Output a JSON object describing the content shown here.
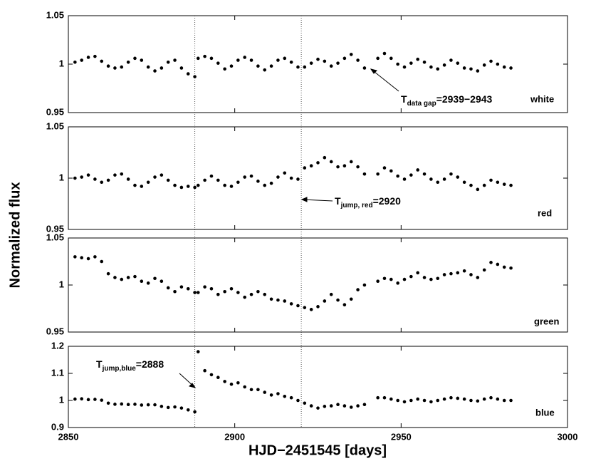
{
  "xlabel": "HJD−2451545 [days]",
  "ylabel": "Normalized flux",
  "vlines": [
    2888,
    2920
  ],
  "chart_data": [
    {
      "type": "scatter",
      "label": "white",
      "ann_main": "T",
      "ann_sub": "data gap",
      "ann_rest": "=2939−2943",
      "color": "#000000",
      "xlim": [
        2850,
        3000
      ],
      "xticks": [
        2850,
        2900,
        2950,
        3000
      ],
      "ylim": [
        0.95,
        1.05
      ],
      "yticks": [
        0.95,
        1,
        1.05
      ],
      "x": [
        2852,
        2854,
        2856,
        2858,
        2860,
        2862,
        2864,
        2866,
        2868,
        2870,
        2872,
        2874,
        2876,
        2878,
        2880,
        2882,
        2884,
        2886,
        2888,
        2889,
        2891,
        2893,
        2895,
        2897,
        2899,
        2901,
        2903,
        2905,
        2907,
        2909,
        2911,
        2913,
        2915,
        2917,
        2919,
        2921,
        2923,
        2925,
        2927,
        2929,
        2931,
        2933,
        2935,
        2937,
        2939,
        2943,
        2945,
        2947,
        2949,
        2951,
        2953,
        2955,
        2957,
        2959,
        2961,
        2963,
        2965,
        2967,
        2969,
        2971,
        2973,
        2975,
        2977,
        2979,
        2981,
        2983
      ],
      "values": [
        1.002,
        1.004,
        1.007,
        1.008,
        1.003,
        0.998,
        0.996,
        0.997,
        1.002,
        1.006,
        1.004,
        0.997,
        0.993,
        0.996,
        1.002,
        1.004,
        0.996,
        0.99,
        0.987,
        1.006,
        1.008,
        1.006,
        1.001,
        0.995,
        0.998,
        1.004,
        1.007,
        1.004,
        0.998,
        0.994,
        0.998,
        1.004,
        1.006,
        1.002,
        0.997,
        0.997,
        1.001,
        1.005,
        1.003,
        0.998,
        1.001,
        1.006,
        1.01,
        1.004,
        0.996,
        1.006,
        1.011,
        1.006,
        1.0,
        0.997,
        1.001,
        1.005,
        1.002,
        0.997,
        0.995,
        0.999,
        1.004,
        1.001,
        0.996,
        0.995,
        0.993,
        0.999,
        1.003,
        1.0,
        0.997,
        0.996
      ]
    },
    {
      "type": "scatter",
      "label": "red",
      "ann_main": "T",
      "ann_sub": "jump, red",
      "ann_rest": "=2920",
      "color": "#000000",
      "xlim": [
        2850,
        3000
      ],
      "xticks": [
        2850,
        2900,
        2950,
        3000
      ],
      "ylim": [
        0.95,
        1.05
      ],
      "yticks": [
        0.95,
        1,
        1.05
      ],
      "x": [
        2852,
        2854,
        2856,
        2858,
        2860,
        2862,
        2864,
        2866,
        2868,
        2870,
        2872,
        2874,
        2876,
        2878,
        2880,
        2882,
        2884,
        2886,
        2888,
        2889,
        2891,
        2893,
        2895,
        2897,
        2899,
        2901,
        2903,
        2905,
        2907,
        2909,
        2911,
        2913,
        2915,
        2917,
        2919,
        2921,
        2923,
        2925,
        2927,
        2929,
        2931,
        2933,
        2935,
        2937,
        2939,
        2943,
        2945,
        2947,
        2949,
        2951,
        2953,
        2955,
        2957,
        2959,
        2961,
        2963,
        2965,
        2967,
        2969,
        2971,
        2973,
        2975,
        2977,
        2979,
        2981,
        2983
      ],
      "values": [
        1.0,
        1.001,
        1.003,
        0.999,
        0.996,
        0.998,
        1.003,
        1.004,
        0.999,
        0.993,
        0.992,
        0.996,
        1.001,
        1.003,
        0.998,
        0.993,
        0.991,
        0.992,
        0.991,
        0.993,
        0.998,
        1.002,
        0.998,
        0.993,
        0.992,
        0.996,
        1.001,
        1.002,
        0.997,
        0.993,
        0.995,
        1.001,
        1.005,
        1.0,
        0.999,
        1.01,
        1.012,
        1.015,
        1.02,
        1.016,
        1.011,
        1.012,
        1.016,
        1.011,
        1.004,
        1.004,
        1.01,
        1.007,
        1.002,
        0.999,
        1.003,
        1.008,
        1.004,
        0.999,
        0.996,
        0.999,
        1.004,
        1.001,
        0.996,
        0.993,
        0.989,
        0.993,
        0.998,
        0.996,
        0.994,
        0.993
      ]
    },
    {
      "type": "scatter",
      "label": "green",
      "color": "#000000",
      "xlim": [
        2850,
        3000
      ],
      "xticks": [
        2850,
        2900,
        2950,
        3000
      ],
      "ylim": [
        0.95,
        1.05
      ],
      "yticks": [
        0.95,
        1,
        1.05
      ],
      "x": [
        2852,
        2854,
        2856,
        2858,
        2860,
        2862,
        2864,
        2866,
        2868,
        2870,
        2872,
        2874,
        2876,
        2878,
        2880,
        2882,
        2884,
        2886,
        2888,
        2889,
        2891,
        2893,
        2895,
        2897,
        2899,
        2901,
        2903,
        2905,
        2907,
        2909,
        2911,
        2913,
        2915,
        2917,
        2919,
        2921,
        2923,
        2925,
        2927,
        2929,
        2931,
        2933,
        2935,
        2937,
        2939,
        2943,
        2945,
        2947,
        2949,
        2951,
        2953,
        2955,
        2957,
        2959,
        2961,
        2963,
        2965,
        2967,
        2969,
        2971,
        2973,
        2975,
        2977,
        2979,
        2981,
        2983
      ],
      "values": [
        1.03,
        1.029,
        1.028,
        1.03,
        1.025,
        1.012,
        1.008,
        1.006,
        1.008,
        1.009,
        1.004,
        1.002,
        1.007,
        1.004,
        0.997,
        0.993,
        0.998,
        0.996,
        0.992,
        0.992,
        0.998,
        0.996,
        0.99,
        0.993,
        0.996,
        0.992,
        0.987,
        0.99,
        0.993,
        0.99,
        0.985,
        0.984,
        0.983,
        0.98,
        0.978,
        0.976,
        0.974,
        0.977,
        0.983,
        0.99,
        0.984,
        0.979,
        0.985,
        0.995,
        1.0,
        1.004,
        1.007,
        1.006,
        1.002,
        1.006,
        1.009,
        1.013,
        1.008,
        1.006,
        1.007,
        1.011,
        1.012,
        1.013,
        1.015,
        1.011,
        1.008,
        1.016,
        1.024,
        1.022,
        1.019,
        1.018
      ]
    },
    {
      "type": "scatter",
      "label": "blue",
      "ann_main": "T",
      "ann_sub": "jump,blue",
      "ann_rest": "=2888",
      "color": "#000000",
      "xlim": [
        2850,
        3000
      ],
      "xticks": [
        2850,
        2900,
        2950,
        3000
      ],
      "ylim": [
        0.9,
        1.2
      ],
      "yticks": [
        0.9,
        1,
        1.1,
        1.2
      ],
      "x": [
        2852,
        2854,
        2856,
        2858,
        2860,
        2862,
        2864,
        2866,
        2868,
        2870,
        2872,
        2874,
        2876,
        2878,
        2880,
        2882,
        2884,
        2886,
        2888,
        2889,
        2891,
        2893,
        2895,
        2897,
        2899,
        2901,
        2903,
        2905,
        2907,
        2909,
        2911,
        2913,
        2915,
        2917,
        2919,
        2921,
        2923,
        2925,
        2927,
        2929,
        2931,
        2933,
        2935,
        2937,
        2939,
        2943,
        2945,
        2947,
        2949,
        2951,
        2953,
        2955,
        2957,
        2959,
        2961,
        2963,
        2965,
        2967,
        2969,
        2971,
        2973,
        2975,
        2977,
        2979,
        2981,
        2983
      ],
      "values": [
        1.005,
        1.006,
        1.003,
        1.004,
        1.001,
        0.99,
        0.986,
        0.987,
        0.985,
        0.986,
        0.983,
        0.984,
        0.984,
        0.978,
        0.974,
        0.976,
        0.972,
        0.965,
        0.958,
        1.18,
        1.11,
        1.095,
        1.085,
        1.07,
        1.06,
        1.065,
        1.05,
        1.04,
        1.04,
        1.03,
        1.02,
        1.025,
        1.015,
        1.01,
        1.0,
        0.99,
        0.98,
        0.972,
        0.978,
        0.98,
        0.985,
        0.98,
        0.975,
        0.98,
        0.985,
        1.01,
        1.01,
        1.005,
        1.0,
        0.995,
        1.0,
        1.005,
        1.0,
        0.995,
        1.0,
        1.005,
        1.01,
        1.008,
        1.005,
        1.0,
        0.998,
        1.005,
        1.01,
        1.005,
        1.0,
        1.0
      ]
    }
  ]
}
